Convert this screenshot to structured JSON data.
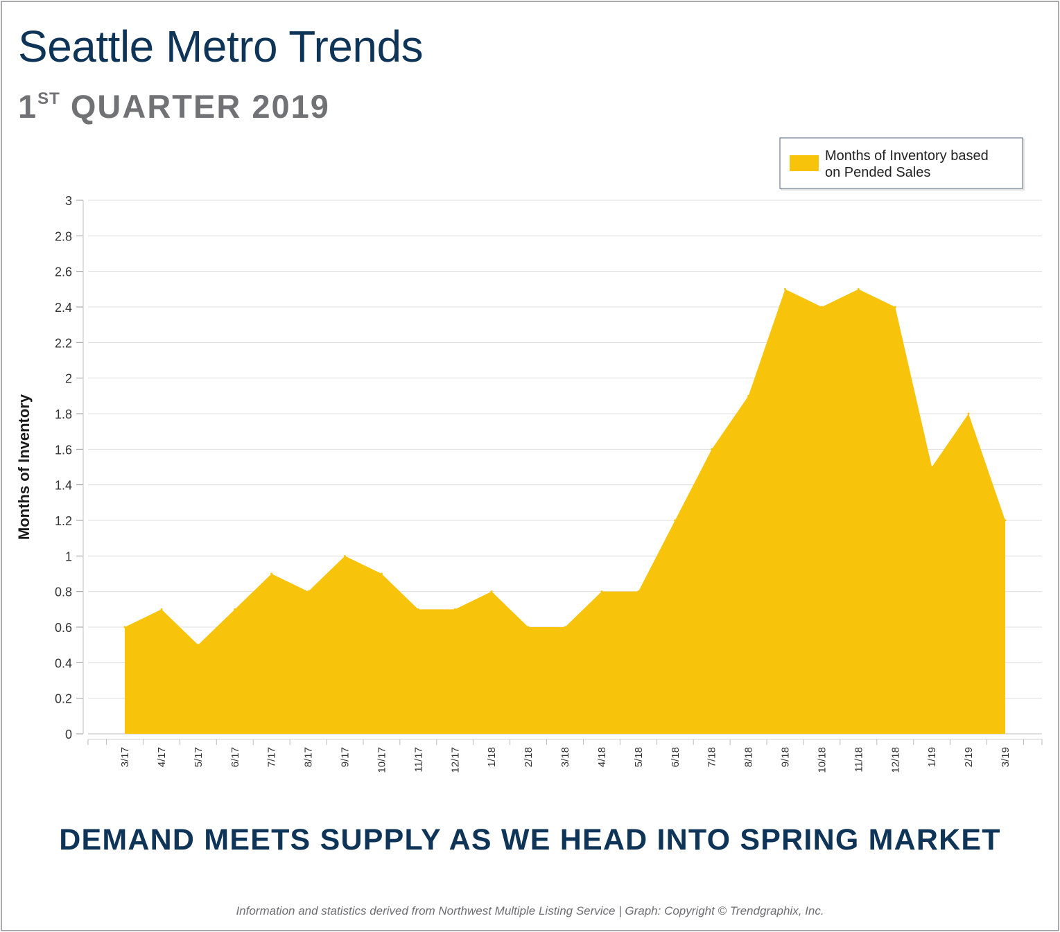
{
  "header": {
    "title": "Seattle Metro Trends",
    "subtitle_ordinal": "1",
    "subtitle_suffix": "ST",
    "subtitle_rest": " QUARTER 2019"
  },
  "headline": "DEMAND MEETS SUPPLY AS WE HEAD INTO SPRING MARKET",
  "footnote": "Information and statistics derived from Northwest Multiple Listing Service  |  Graph: Copyright © Trendgraphix, Inc.",
  "colors": {
    "title": "#0e3458",
    "subtitle": "#707275",
    "area": "#f7c30b",
    "grid": "#dcdcdc"
  },
  "chart_data": {
    "type": "area",
    "title": "",
    "xlabel": "",
    "ylabel": "Months of Inventory",
    "ylim": [
      0,
      3
    ],
    "yticks": [
      "0",
      "0.2",
      "0.4",
      "0.6",
      "0.8",
      "1",
      "1.2",
      "1.4",
      "1.6",
      "1.8",
      "2",
      "2.2",
      "2.4",
      "2.6",
      "2.8",
      "3"
    ],
    "grid": true,
    "legend_position": "top-right",
    "categories": [
      "3/17",
      "4/17",
      "5/17",
      "6/17",
      "7/17",
      "8/17",
      "9/17",
      "10/17",
      "11/17",
      "12/17",
      "1/18",
      "2/18",
      "3/18",
      "4/18",
      "5/18",
      "6/18",
      "7/18",
      "8/18",
      "9/18",
      "10/18",
      "11/18",
      "12/18",
      "1/19",
      "2/19",
      "3/19"
    ],
    "series": [
      {
        "name": "Months of Inventory based on Pended Sales",
        "legend_lines": [
          "Months of Inventory based",
          "on Pended Sales"
        ],
        "values": [
          0.6,
          0.7,
          0.5,
          0.7,
          0.9,
          0.8,
          1.0,
          0.9,
          0.7,
          0.7,
          0.8,
          0.6,
          0.6,
          0.8,
          0.8,
          1.2,
          1.6,
          1.9,
          2.5,
          2.4,
          2.5,
          2.4,
          1.5,
          1.8,
          1.2
        ]
      }
    ]
  }
}
